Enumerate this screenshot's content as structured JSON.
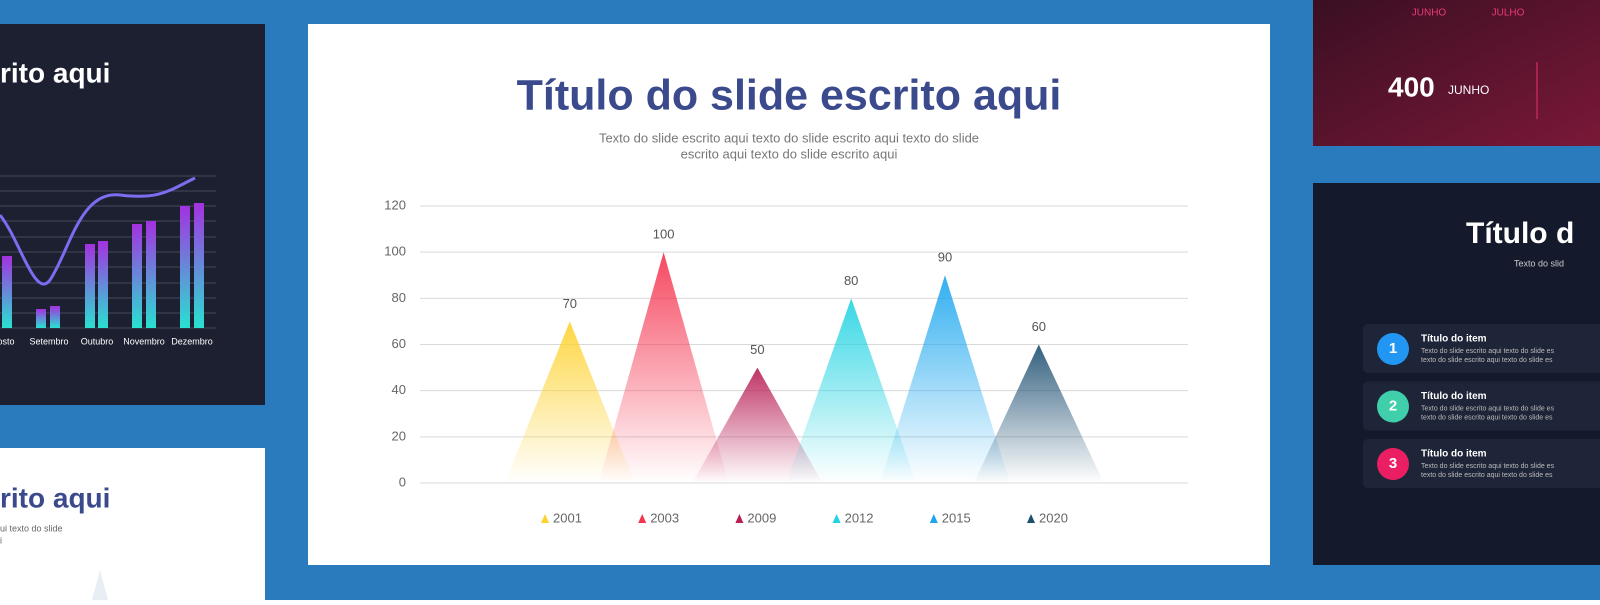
{
  "chart_data": {
    "type": "triangle",
    "title": "Título do slide escrito aqui",
    "subtitle": [
      "Texto do slide escrito aqui texto do slide escrito aqui texto do slide",
      "escrito aqui texto do slide escrito aqui"
    ],
    "categories": [
      "2001",
      "2003",
      "2009",
      "2012",
      "2015",
      "2020"
    ],
    "values": [
      70,
      100,
      50,
      80,
      90,
      60
    ],
    "colors": [
      "#fdd22f",
      "#f5344f",
      "#b81d55",
      "#22d3e2",
      "#1ba6ef",
      "#1c4e70"
    ],
    "ylim": [
      0,
      120
    ],
    "yticks": [
      0,
      20,
      40,
      60,
      80,
      100,
      120
    ],
    "grid": true
  },
  "left_top_slide": {
    "title": "rito aqui",
    "categories": [
      "osto",
      "Setembro",
      "Outubro",
      "Novembro",
      "Dezembro"
    ]
  },
  "left_bottom_slide": {
    "title": "rito aqui",
    "text": [
      "ui texto do slide",
      "i"
    ]
  },
  "right_top_slide": {
    "months": [
      "JUNHO",
      "JULHO"
    ],
    "stat_value": 400,
    "stat_label": "JUNHO"
  },
  "right_bottom_slide": {
    "title": "Título d",
    "subtitle": "Texto do slid",
    "items": [
      {
        "number": 1,
        "title": "Título do item",
        "text": [
          "Texto do slide escrito aqui texto do slide es",
          "texto do slide escrito aqui texto do slide es"
        ]
      },
      {
        "number": 2,
        "title": "Título do item",
        "text": [
          "Texto do slide escrito aqui texto do slide es",
          "texto do slide escrito aqui texto do slide es"
        ]
      },
      {
        "number": 3,
        "title": "Título do item",
        "text": [
          "Texto do slide escrito aqui texto do slide es",
          "texto do slide escrito aqui texto do slide es"
        ]
      }
    ]
  }
}
